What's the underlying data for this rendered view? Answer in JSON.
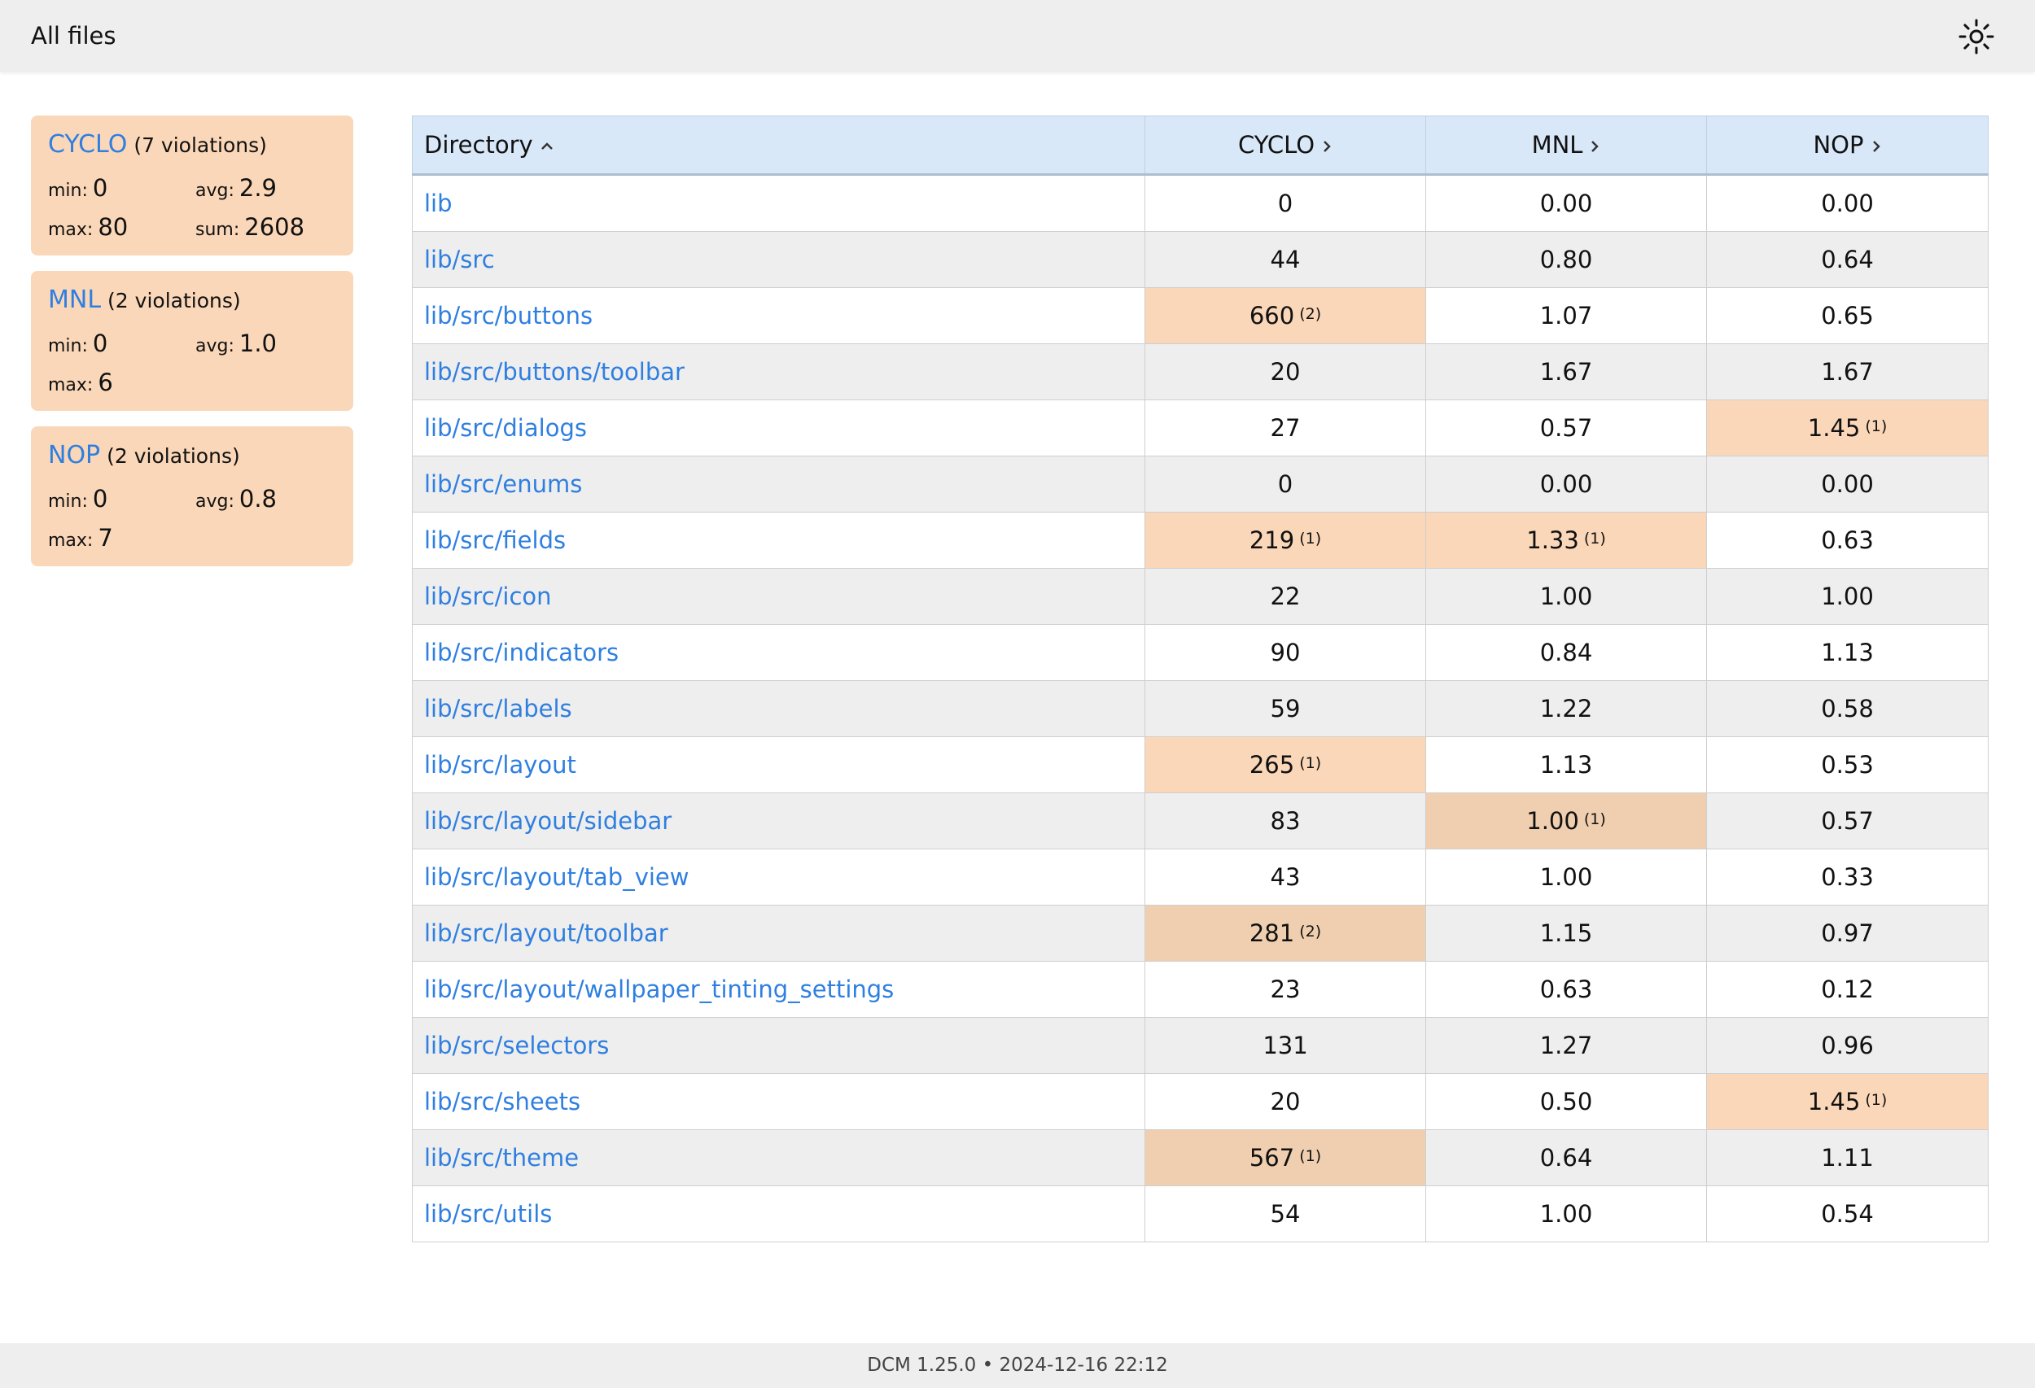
{
  "header": {
    "title": "All files",
    "theme_icon": "sun-icon"
  },
  "summary": [
    {
      "metric": "CYCLO",
      "violations": "(7 violations)",
      "stats": {
        "min_label": "min:",
        "min": "0",
        "avg_label": "avg:",
        "avg": "2.9",
        "max_label": "max:",
        "max": "80",
        "sum_label": "sum:",
        "sum": "2608"
      }
    },
    {
      "metric": "MNL",
      "violations": "(2 violations)",
      "stats": {
        "min_label": "min:",
        "min": "0",
        "avg_label": "avg:",
        "avg": "1.0",
        "max_label": "max:",
        "max": "6"
      }
    },
    {
      "metric": "NOP",
      "violations": "(2 violations)",
      "stats": {
        "min_label": "min:",
        "min": "0",
        "avg_label": "avg:",
        "avg": "0.8",
        "max_label": "max:",
        "max": "7"
      }
    }
  ],
  "table": {
    "columns": [
      "Directory",
      "CYCLO",
      "MNL",
      "NOP"
    ],
    "sort_icons": [
      "chevron-up-icon",
      "chevron-right-icon",
      "chevron-right-icon",
      "chevron-right-icon"
    ],
    "rows": [
      {
        "dir": "lib",
        "cyclo": "0",
        "cyclo_v": "",
        "mnl": "0.00",
        "mnl_v": "",
        "nop": "0.00",
        "nop_v": ""
      },
      {
        "dir": "lib/src",
        "cyclo": "44",
        "cyclo_v": "",
        "mnl": "0.80",
        "mnl_v": "",
        "nop": "0.64",
        "nop_v": ""
      },
      {
        "dir": "lib/src/buttons",
        "cyclo": "660",
        "cyclo_v": "(2)",
        "mnl": "1.07",
        "mnl_v": "",
        "nop": "0.65",
        "nop_v": ""
      },
      {
        "dir": "lib/src/buttons/toolbar",
        "cyclo": "20",
        "cyclo_v": "",
        "mnl": "1.67",
        "mnl_v": "",
        "nop": "1.67",
        "nop_v": ""
      },
      {
        "dir": "lib/src/dialogs",
        "cyclo": "27",
        "cyclo_v": "",
        "mnl": "0.57",
        "mnl_v": "",
        "nop": "1.45",
        "nop_v": "(1)"
      },
      {
        "dir": "lib/src/enums",
        "cyclo": "0",
        "cyclo_v": "",
        "mnl": "0.00",
        "mnl_v": "",
        "nop": "0.00",
        "nop_v": ""
      },
      {
        "dir": "lib/src/fields",
        "cyclo": "219",
        "cyclo_v": "(1)",
        "mnl": "1.33",
        "mnl_v": "(1)",
        "nop": "0.63",
        "nop_v": ""
      },
      {
        "dir": "lib/src/icon",
        "cyclo": "22",
        "cyclo_v": "",
        "mnl": "1.00",
        "mnl_v": "",
        "nop": "1.00",
        "nop_v": ""
      },
      {
        "dir": "lib/src/indicators",
        "cyclo": "90",
        "cyclo_v": "",
        "mnl": "0.84",
        "mnl_v": "",
        "nop": "1.13",
        "nop_v": ""
      },
      {
        "dir": "lib/src/labels",
        "cyclo": "59",
        "cyclo_v": "",
        "mnl": "1.22",
        "mnl_v": "",
        "nop": "0.58",
        "nop_v": ""
      },
      {
        "dir": "lib/src/layout",
        "cyclo": "265",
        "cyclo_v": "(1)",
        "mnl": "1.13",
        "mnl_v": "",
        "nop": "0.53",
        "nop_v": ""
      },
      {
        "dir": "lib/src/layout/sidebar",
        "cyclo": "83",
        "cyclo_v": "",
        "mnl": "1.00",
        "mnl_v": "(1)",
        "nop": "0.57",
        "nop_v": ""
      },
      {
        "dir": "lib/src/layout/tab_view",
        "cyclo": "43",
        "cyclo_v": "",
        "mnl": "1.00",
        "mnl_v": "",
        "nop": "0.33",
        "nop_v": ""
      },
      {
        "dir": "lib/src/layout/toolbar",
        "cyclo": "281",
        "cyclo_v": "(2)",
        "mnl": "1.15",
        "mnl_v": "",
        "nop": "0.97",
        "nop_v": ""
      },
      {
        "dir": "lib/src/layout/wallpaper_tinting_settings",
        "cyclo": "23",
        "cyclo_v": "",
        "mnl": "0.63",
        "mnl_v": "",
        "nop": "0.12",
        "nop_v": ""
      },
      {
        "dir": "lib/src/selectors",
        "cyclo": "131",
        "cyclo_v": "",
        "mnl": "1.27",
        "mnl_v": "",
        "nop": "0.96",
        "nop_v": ""
      },
      {
        "dir": "lib/src/sheets",
        "cyclo": "20",
        "cyclo_v": "",
        "mnl": "0.50",
        "mnl_v": "",
        "nop": "1.45",
        "nop_v": "(1)"
      },
      {
        "dir": "lib/src/theme",
        "cyclo": "567",
        "cyclo_v": "(1)",
        "mnl": "0.64",
        "mnl_v": "",
        "nop": "1.11",
        "nop_v": ""
      },
      {
        "dir": "lib/src/utils",
        "cyclo": "54",
        "cyclo_v": "",
        "mnl": "1.00",
        "mnl_v": "",
        "nop": "0.54",
        "nop_v": ""
      }
    ]
  },
  "footer": {
    "text": "DCM 1.25.0 • 2024-12-16 22:12"
  },
  "colors": {
    "accent": "#2f7fe0",
    "violation_bg": "#fad7b8",
    "header_bg": "#d9e8f8",
    "topbar_bg": "#eeeeee"
  }
}
